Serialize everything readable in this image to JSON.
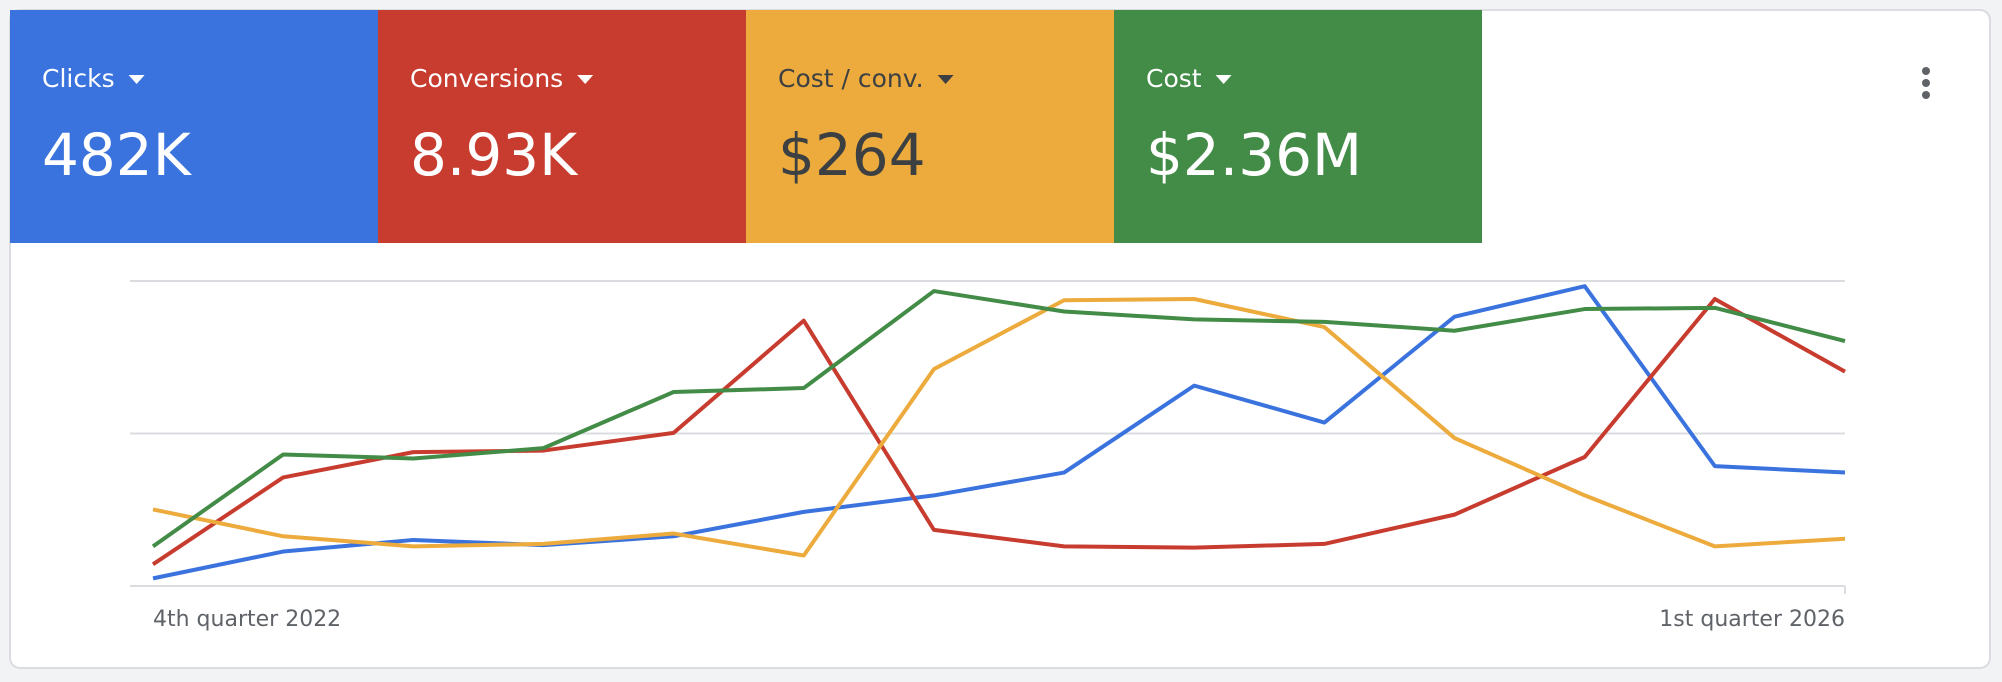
{
  "chart_data": {
    "type": "line",
    "categories": [
      "4th quarter 2022",
      null,
      null,
      null,
      null,
      null,
      null,
      null,
      null,
      null,
      null,
      null,
      null,
      "1st quarter 2026"
    ],
    "ylim": [
      0,
      100
    ],
    "yticks": [
      0,
      50,
      100
    ],
    "grid": true,
    "series": [
      {
        "name": "Clicks",
        "total": "482K",
        "color": "#3b73de",
        "text_color": "#ffffff",
        "values": [
          2.5,
          11.3,
          15.1,
          13.4,
          16.3,
          24.3,
          29.7,
          37.2,
          65.7,
          53.6,
          88.3,
          98.3,
          39.3,
          37.2
        ]
      },
      {
        "name": "Conversions",
        "total": "8.93K",
        "color": "#c83c2f",
        "text_color": "#ffffff",
        "values": [
          7.1,
          35.6,
          43.9,
          44.4,
          50.2,
          87.0,
          18.4,
          13.0,
          12.6,
          13.8,
          23.4,
          42.3,
          94.1,
          70.3
        ]
      },
      {
        "name": "Cost / conv.",
        "total": "$264",
        "color": "#ecab3c",
        "text_color": "#3c4043",
        "values": [
          25.1,
          16.3,
          13.0,
          13.8,
          17.2,
          10.0,
          71.1,
          93.7,
          94.1,
          84.9,
          48.5,
          29.7,
          13.0,
          15.5
        ]
      },
      {
        "name": "Cost",
        "total": "$2.36M",
        "color": "#438c47",
        "text_color": "#ffffff",
        "values": [
          13.0,
          43.1,
          41.8,
          45.2,
          63.6,
          64.9,
          96.7,
          90.0,
          87.4,
          86.6,
          83.7,
          90.8,
          91.2,
          80.3
        ]
      }
    ]
  }
}
